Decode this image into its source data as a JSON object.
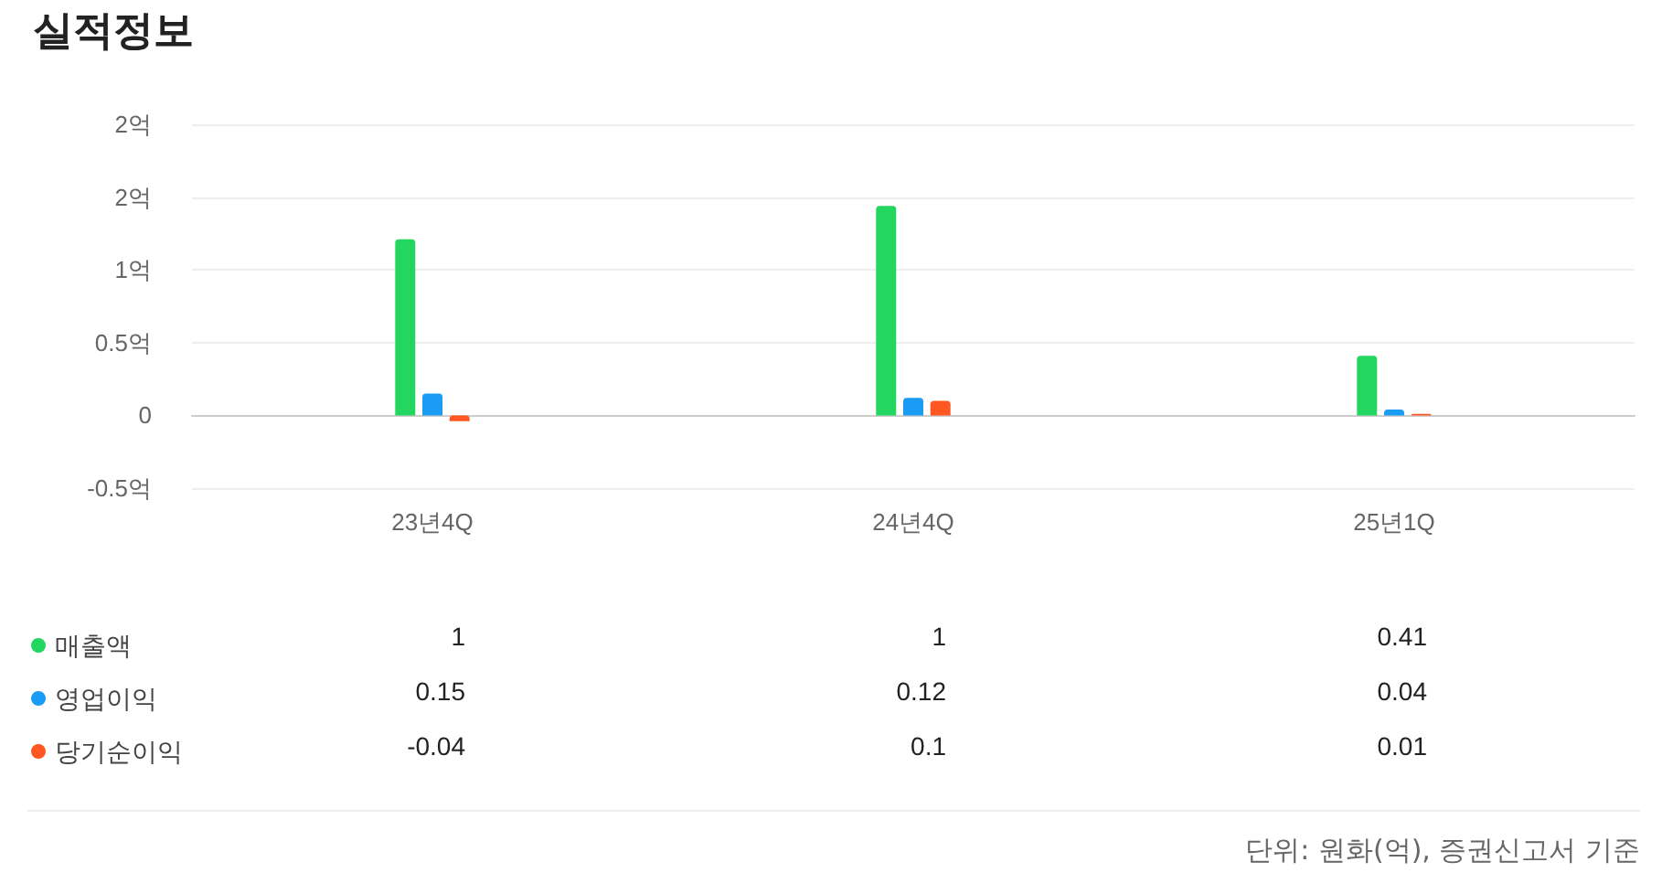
{
  "chart_data": {
    "type": "bar",
    "title": "실적정보",
    "categories": [
      "23년4Q",
      "24년4Q",
      "25년1Q"
    ],
    "series": [
      {
        "name": "매출액",
        "color": "#22d660",
        "values": [
          1.21,
          1.44,
          0.41
        ],
        "value_labels": [
          "1",
          "1",
          "0.41"
        ]
      },
      {
        "name": "영업이익",
        "color": "#1a9cf5",
        "values": [
          0.15,
          0.12,
          0.04
        ],
        "value_labels": [
          "0.15",
          "0.12",
          "0.04"
        ]
      },
      {
        "name": "당기순이익",
        "color": "#ff5722",
        "values": [
          -0.04,
          0.1,
          0.01
        ],
        "value_labels": [
          "-0.04",
          "0.1",
          "0.01"
        ]
      }
    ],
    "ylim": [
      -0.5,
      2
    ],
    "yticks": [
      {
        "value": -0.5,
        "label": "-0.5억"
      },
      {
        "value": 0,
        "label": "0"
      },
      {
        "value": 0.5,
        "label": "0.5억"
      },
      {
        "value": 1,
        "label": "1억"
      },
      {
        "value": 1.5,
        "label": "2억"
      },
      {
        "value": 2,
        "label": "2억"
      }
    ],
    "grid": "y",
    "legend": "bottom left",
    "annotations": [
      "단위: 원화(억), 증권신고서 기준"
    ]
  }
}
